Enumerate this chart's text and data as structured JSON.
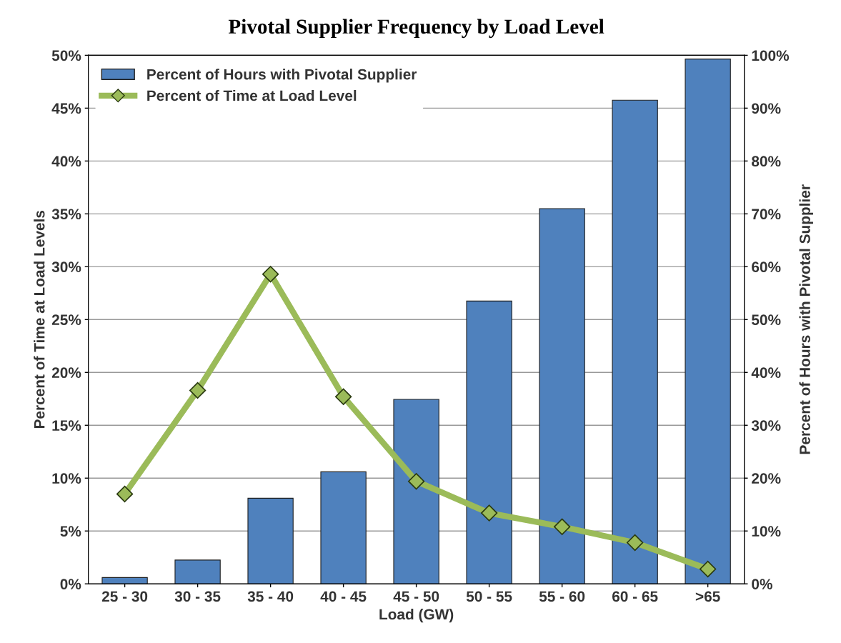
{
  "chart_data": {
    "type": "bar",
    "title": "Pivotal Supplier Frequency by Load Level",
    "xlabel": "Load (GW)",
    "ylabel": "Percent of Time at Load Levels",
    "y2label": "Percent of Hours with Pivotal Supplier",
    "categories": [
      "25 - 30",
      "30 - 35",
      "35 - 40",
      "40 - 45",
      "45 - 50",
      "50 - 55",
      "55 - 60",
      "60 - 65",
      ">65"
    ],
    "series": [
      {
        "name": "Percent of Hours with Pivotal Supplier",
        "axis": "y2",
        "color": "#4f81bd",
        "values": [
          1.2,
          4.5,
          16.2,
          21.2,
          34.9,
          53.5,
          71.0,
          91.5,
          99.3
        ]
      },
      {
        "name": "Percent of Time at Load Level",
        "type": "line",
        "axis": "y",
        "color": "#9bbb59",
        "marker": "diamond",
        "values": [
          8.5,
          18.3,
          29.3,
          17.7,
          9.7,
          6.7,
          5.4,
          3.9,
          1.4
        ]
      }
    ],
    "ylim": [
      0,
      50
    ],
    "yticks": [
      {
        "value": 0,
        "label": "0%"
      },
      {
        "value": 5,
        "label": "5%"
      },
      {
        "value": 10,
        "label": "10%"
      },
      {
        "value": 15,
        "label": "15%"
      },
      {
        "value": 20,
        "label": "20%"
      },
      {
        "value": 25,
        "label": "25%"
      },
      {
        "value": 30,
        "label": "30%"
      },
      {
        "value": 35,
        "label": "35%"
      },
      {
        "value": 40,
        "label": "40%"
      },
      {
        "value": 45,
        "label": "45%"
      },
      {
        "value": 50,
        "label": "50%"
      }
    ],
    "y2lim": [
      0,
      100
    ],
    "y2ticks": [
      {
        "value": 0,
        "label": "0%"
      },
      {
        "value": 10,
        "label": "10%"
      },
      {
        "value": 20,
        "label": "20%"
      },
      {
        "value": 30,
        "label": "30%"
      },
      {
        "value": 40,
        "label": "40%"
      },
      {
        "value": 50,
        "label": "50%"
      },
      {
        "value": 60,
        "label": "60%"
      },
      {
        "value": 70,
        "label": "70%"
      },
      {
        "value": 80,
        "label": "80%"
      },
      {
        "value": 90,
        "label": "90%"
      },
      {
        "value": 100,
        "label": "100%"
      }
    ],
    "grid": "y",
    "legend": "top left"
  }
}
